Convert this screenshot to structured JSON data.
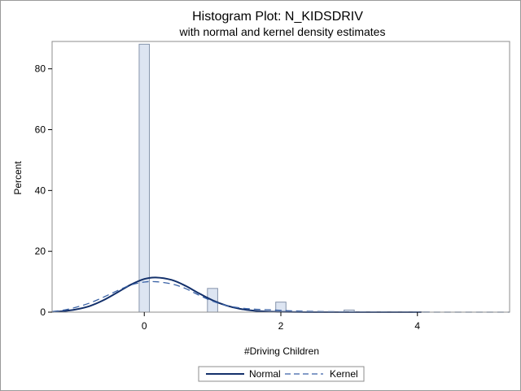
{
  "chart_data": {
    "type": "bar",
    "title": "Histogram Plot: N_KIDSDRIV",
    "subtitle": "with normal and kernel density estimates",
    "xlabel": "#Driving Children",
    "ylabel": "Percent",
    "xlim": [
      -1.35,
      5.35
    ],
    "ylim": [
      0,
      89
    ],
    "xticks": [
      0,
      2,
      4
    ],
    "yticks": [
      0,
      20,
      40,
      60,
      80
    ],
    "bin_width": 0.15,
    "bins": [
      {
        "x": 0,
        "value": 88.1
      },
      {
        "x": 1,
        "value": 7.8
      },
      {
        "x": 2,
        "value": 3.3
      },
      {
        "x": 3,
        "value": 0.7
      },
      {
        "x": 4,
        "value": 0.1
      }
    ],
    "grid": false,
    "legend": {
      "position": "bottom-center",
      "entries": [
        "Normal",
        "Kernel"
      ]
    },
    "series": [
      {
        "name": "Normal",
        "style": "solid",
        "color": "#13306b",
        "x": [
          -1.35,
          -1.2,
          -1.0,
          -0.8,
          -0.6,
          -0.4,
          -0.2,
          0.0,
          0.17,
          0.4,
          0.6,
          0.8,
          1.0,
          1.2,
          1.4,
          1.6,
          1.8,
          2.0,
          2.4,
          2.8,
          3.2,
          3.6,
          4.0,
          4.05
        ],
        "values": [
          0.1,
          0.3,
          0.9,
          2.0,
          3.9,
          6.4,
          9.0,
          10.9,
          11.4,
          10.6,
          8.7,
          6.2,
          3.9,
          2.2,
          1.1,
          0.5,
          0.2,
          0.1,
          0.0,
          0.0,
          0.0,
          0.0,
          0.0,
          0.0
        ]
      },
      {
        "name": "Kernel",
        "style": "dashed",
        "color": "#3a62a6",
        "x": [
          -1.35,
          -1.2,
          -1.0,
          -0.8,
          -0.6,
          -0.4,
          -0.2,
          0.0,
          0.17,
          0.4,
          0.6,
          0.8,
          1.0,
          1.2,
          1.4,
          1.6,
          1.8,
          2.0,
          2.2,
          2.6,
          3.0,
          3.4,
          4.0,
          4.5,
          5.0,
          5.35
        ],
        "values": [
          0.2,
          0.6,
          1.6,
          3.0,
          4.9,
          7.0,
          8.9,
          9.9,
          10.0,
          9.3,
          7.8,
          5.6,
          3.6,
          2.2,
          1.4,
          1.0,
          0.8,
          0.6,
          0.4,
          0.2,
          0.1,
          0.05,
          0.02,
          0.0,
          0.0,
          0.0
        ]
      }
    ],
    "colors": {
      "bar_fill": "#dde5f2",
      "bar_stroke": "#8593ab",
      "normal_line": "#13306b",
      "kernel_line": "#3a62a6"
    }
  }
}
